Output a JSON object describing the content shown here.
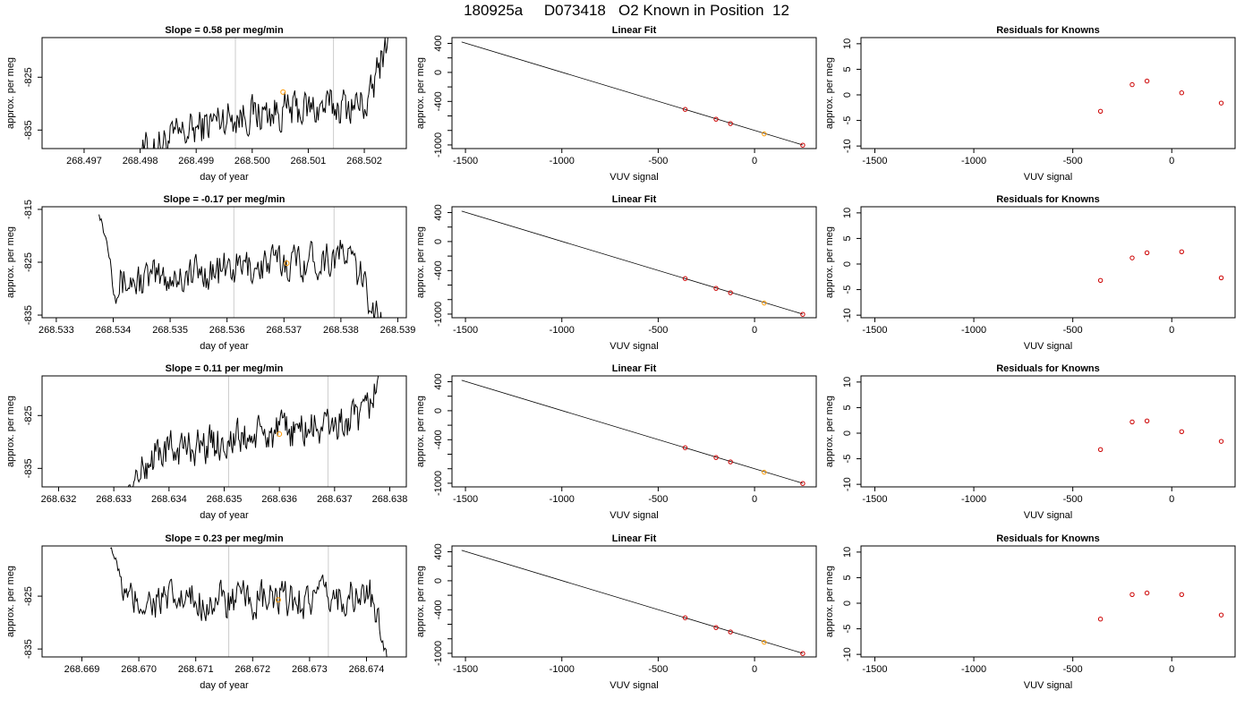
{
  "title": "180925a     D073418   O2 Known in Position  12",
  "colors": {
    "trace": "#000000",
    "marker": "#ff9900",
    "point": "#cc0000",
    "divider": "#cccccc"
  },
  "chart_data": [
    {
      "type": "line",
      "title": "Slope =  0.58  per meg/min",
      "xlabel": "day of year",
      "ylabel": "approx. per meg",
      "xlim": [
        268.49625,
        268.50275
      ],
      "ylim": [
        -838.5,
        -817.5
      ],
      "xticks": [
        268.497,
        268.498,
        268.499,
        268.5,
        268.501,
        268.502
      ],
      "xtick_labels": [
        "268.497",
        "268.498",
        "268.499",
        "268.500",
        "268.501",
        "268.502"
      ],
      "yticks": [
        -825,
        -835
      ],
      "ytick_labels": [
        "-825",
        "-835"
      ],
      "vlines": [
        268.4997,
        268.50145
      ],
      "marker_at": [
        268.50055,
        -827.8
      ],
      "trace": {
        "start": 268.49785,
        "end": 268.50255,
        "segments": [
          [
            0,
            -840
          ],
          [
            0.35,
            -832.5
          ],
          [
            0.9,
            -830
          ],
          [
            1.0,
            -812
          ]
        ]
      }
    },
    {
      "type": "line",
      "title": "Slope =  -0.17  per meg/min",
      "xlabel": "day of year",
      "ylabel": "approx. per meg",
      "xlim": [
        268.53275,
        268.53915
      ],
      "ylim": [
        -835.5,
        -814.5
      ],
      "xticks": [
        268.533,
        268.534,
        268.535,
        268.536,
        268.537,
        268.538,
        268.539
      ],
      "xtick_labels": [
        "268.533",
        "268.534",
        "268.535",
        "268.536",
        "268.537",
        "268.538",
        "268.539"
      ],
      "yticks": [
        -815,
        -825,
        -835
      ],
      "ytick_labels": [
        "-815",
        "-825",
        "-835"
      ],
      "vlines": [
        268.53612,
        268.53788
      ],
      "marker_at": [
        268.53705,
        -825.2
      ],
      "trace": {
        "start": 268.53375,
        "end": 268.5389,
        "segments": [
          [
            0,
            -815
          ],
          [
            0.06,
            -829
          ],
          [
            0.5,
            -826
          ],
          [
            0.85,
            -823.5
          ],
          [
            1.0,
            -840
          ]
        ]
      }
    },
    {
      "type": "line",
      "title": "Slope =  0.11  per meg/min",
      "xlabel": "day of year",
      "ylabel": "approx. per meg",
      "xlim": [
        268.6317,
        268.6383
      ],
      "ylim": [
        -838.5,
        -817.5
      ],
      "xticks": [
        268.632,
        268.633,
        268.634,
        268.635,
        268.636,
        268.637,
        268.638
      ],
      "xtick_labels": [
        "268.632",
        "268.633",
        "268.634",
        "268.635",
        "268.636",
        "268.637",
        "268.638"
      ],
      "yticks": [
        -825,
        -835
      ],
      "ytick_labels": [
        "-825",
        "-835"
      ],
      "vlines": [
        268.63508,
        268.63688
      ],
      "marker_at": [
        268.636,
        -828.5
      ],
      "trace": {
        "start": 268.6332,
        "end": 268.6379,
        "segments": [
          [
            0,
            -840
          ],
          [
            0.12,
            -832
          ],
          [
            0.5,
            -829
          ],
          [
            0.92,
            -826
          ],
          [
            1.0,
            -815
          ]
        ]
      }
    },
    {
      "type": "line",
      "title": "Slope =  0.23  per meg/min",
      "xlabel": "day of year",
      "ylabel": "approx. per meg",
      "xlim": [
        268.6683,
        268.6747
      ],
      "ylim": [
        -836.5,
        -815.5
      ],
      "xticks": [
        268.669,
        268.67,
        268.671,
        268.672,
        268.673,
        268.674
      ],
      "xtick_labels": [
        "268.669",
        "268.670",
        "268.671",
        "268.672",
        "268.673",
        "268.674"
      ],
      "yticks": [
        -825,
        -835
      ],
      "ytick_labels": [
        "-825",
        "-835"
      ],
      "vlines": [
        268.67158,
        268.67333
      ],
      "marker_at": [
        268.67245,
        -825.7
      ],
      "trace": {
        "start": 268.6695,
        "end": 268.6744,
        "segments": [
          [
            0,
            -815
          ],
          [
            0.06,
            -826
          ],
          [
            0.55,
            -826
          ],
          [
            0.93,
            -825
          ],
          [
            1.0,
            -838
          ]
        ]
      }
    },
    {
      "type": "scatter",
      "title": "Linear Fit",
      "xlabel": "VUV signal",
      "ylabel": "approx. per meg",
      "xlim": [
        -1570,
        320
      ],
      "ylim": [
        -1050,
        480
      ],
      "xticks": [
        -1500,
        -1000,
        -500,
        0
      ],
      "xtick_labels": [
        "-1500",
        "-1000",
        "-500",
        "0"
      ],
      "yticks": [
        400,
        0,
        -400,
        -1000
      ],
      "ytick_labels": [
        "400",
        "0",
        "-400",
        "-1000"
      ],
      "minor_yticks": [
        200,
        -200,
        -600,
        -800
      ],
      "fit_line": [
        [
          -1520,
          420
        ],
        [
          250,
          -1000
        ]
      ],
      "points": [
        [
          -360,
          -510
        ],
        [
          -200,
          -645
        ],
        [
          -125,
          -705
        ],
        [
          50,
          -848
        ],
        [
          250,
          -1003
        ]
      ],
      "highlight_index": 3
    },
    {
      "type": "scatter",
      "title": "Linear Fit",
      "xlabel": "VUV signal",
      "ylabel": "approx. per meg",
      "xlim": [
        -1570,
        320
      ],
      "ylim": [
        -1050,
        480
      ],
      "xticks": [
        -1500,
        -1000,
        -500,
        0
      ],
      "xtick_labels": [
        "-1500",
        "-1000",
        "-500",
        "0"
      ],
      "yticks": [
        400,
        0,
        -400,
        -1000
      ],
      "ytick_labels": [
        "400",
        "0",
        "-400",
        "-1000"
      ],
      "minor_yticks": [
        200,
        -200,
        -600,
        -800
      ],
      "fit_line": [
        [
          -1520,
          420
        ],
        [
          250,
          -1000
        ]
      ],
      "points": [
        [
          -360,
          -510
        ],
        [
          -200,
          -645
        ],
        [
          -125,
          -705
        ],
        [
          50,
          -848
        ],
        [
          250,
          -1003
        ]
      ],
      "highlight_index": 3
    },
    {
      "type": "scatter",
      "title": "Linear Fit",
      "xlabel": "VUV signal",
      "ylabel": "approx. per meg",
      "xlim": [
        -1570,
        320
      ],
      "ylim": [
        -1050,
        480
      ],
      "xticks": [
        -1500,
        -1000,
        -500,
        0
      ],
      "xtick_labels": [
        "-1500",
        "-1000",
        "-500",
        "0"
      ],
      "yticks": [
        400,
        0,
        -400,
        -1000
      ],
      "ytick_labels": [
        "400",
        "0",
        "-400",
        "-1000"
      ],
      "minor_yticks": [
        200,
        -200,
        -600,
        -800
      ],
      "fit_line": [
        [
          -1520,
          420
        ],
        [
          250,
          -1000
        ]
      ],
      "points": [
        [
          -360,
          -510
        ],
        [
          -200,
          -645
        ],
        [
          -125,
          -705
        ],
        [
          50,
          -848
        ],
        [
          250,
          -1003
        ]
      ],
      "highlight_index": 3
    },
    {
      "type": "scatter",
      "title": "Linear Fit",
      "xlabel": "VUV signal",
      "ylabel": "approx. per meg",
      "xlim": [
        -1570,
        320
      ],
      "ylim": [
        -1050,
        480
      ],
      "xticks": [
        -1500,
        -1000,
        -500,
        0
      ],
      "xtick_labels": [
        "-1500",
        "-1000",
        "-500",
        "0"
      ],
      "yticks": [
        400,
        0,
        -400,
        -1000
      ],
      "ytick_labels": [
        "400",
        "0",
        "-400",
        "-1000"
      ],
      "minor_yticks": [
        200,
        -200,
        -600,
        -800
      ],
      "fit_line": [
        [
          -1520,
          420
        ],
        [
          250,
          -1000
        ]
      ],
      "points": [
        [
          -360,
          -510
        ],
        [
          -200,
          -645
        ],
        [
          -125,
          -705
        ],
        [
          50,
          -848
        ],
        [
          250,
          -1003
        ]
      ],
      "highlight_index": 3
    },
    {
      "type": "scatter",
      "title": "Residuals for Knowns",
      "xlabel": "VUV signal",
      "ylabel": "approx. per meg",
      "xlim": [
        -1570,
        320
      ],
      "ylim": [
        -10.5,
        11.2
      ],
      "xticks": [
        -1500,
        -1000,
        -500,
        0
      ],
      "xtick_labels": [
        "-1500",
        "-1000",
        "-500",
        "0"
      ],
      "yticks": [
        10,
        5,
        0,
        -5,
        -10
      ],
      "ytick_labels": [
        "10",
        "5",
        "0",
        "-5",
        "-10"
      ],
      "points": [
        [
          -360,
          -3.2
        ],
        [
          -200,
          2.0
        ],
        [
          -125,
          2.7
        ],
        [
          50,
          0.4
        ],
        [
          250,
          -1.6
        ]
      ]
    },
    {
      "type": "scatter",
      "title": "Residuals for Knowns",
      "xlabel": "VUV signal",
      "ylabel": "approx. per meg",
      "xlim": [
        -1570,
        320
      ],
      "ylim": [
        -10.5,
        11.2
      ],
      "xticks": [
        -1500,
        -1000,
        -500,
        0
      ],
      "xtick_labels": [
        "-1500",
        "-1000",
        "-500",
        "0"
      ],
      "yticks": [
        10,
        5,
        0,
        -5,
        -10
      ],
      "ytick_labels": [
        "10",
        "5",
        "0",
        "-5",
        "-10"
      ],
      "points": [
        [
          -360,
          -3.2
        ],
        [
          -200,
          1.2
        ],
        [
          -125,
          2.2
        ],
        [
          50,
          2.4
        ],
        [
          250,
          -2.7
        ]
      ]
    },
    {
      "type": "scatter",
      "title": "Residuals for Knowns",
      "xlabel": "VUV signal",
      "ylabel": "approx. per meg",
      "xlim": [
        -1570,
        320
      ],
      "ylim": [
        -10.5,
        11.2
      ],
      "xticks": [
        -1500,
        -1000,
        -500,
        0
      ],
      "xtick_labels": [
        "-1500",
        "-1000",
        "-500",
        "0"
      ],
      "yticks": [
        10,
        5,
        0,
        -5,
        -10
      ],
      "ytick_labels": [
        "10",
        "5",
        "0",
        "-5",
        "-10"
      ],
      "points": [
        [
          -360,
          -3.2
        ],
        [
          -200,
          2.2
        ],
        [
          -125,
          2.4
        ],
        [
          50,
          0.3
        ],
        [
          250,
          -1.6
        ]
      ]
    },
    {
      "type": "scatter",
      "title": "Residuals for Knowns",
      "xlabel": "VUV signal",
      "ylabel": "approx. per meg",
      "xlim": [
        -1570,
        320
      ],
      "ylim": [
        -10.5,
        11.2
      ],
      "xticks": [
        -1500,
        -1000,
        -500,
        0
      ],
      "xtick_labels": [
        "-1500",
        "-1000",
        "-500",
        "0"
      ],
      "yticks": [
        10,
        5,
        0,
        -5,
        -10
      ],
      "ytick_labels": [
        "10",
        "5",
        "0",
        "-5",
        "-10"
      ],
      "points": [
        [
          -360,
          -3.1
        ],
        [
          -200,
          1.7
        ],
        [
          -125,
          2.0
        ],
        [
          50,
          1.7
        ],
        [
          250,
          -2.3
        ]
      ]
    }
  ]
}
